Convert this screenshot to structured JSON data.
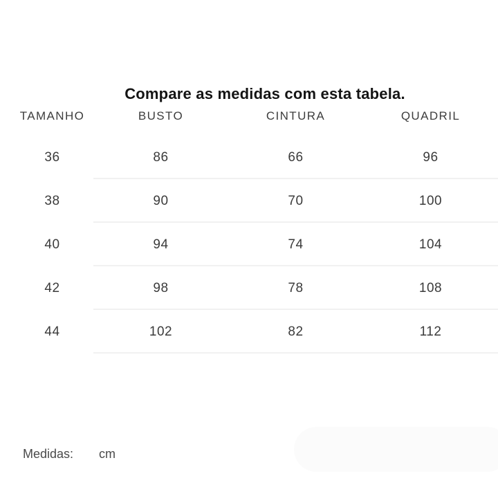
{
  "page": {
    "title": "Compare as medidas com esta tabela.",
    "background_color": "#ffffff"
  },
  "table": {
    "columns": [
      "TAMANHO",
      "BUSTO",
      "CINTURA",
      "QUADRIL"
    ],
    "rows": [
      [
        "36",
        "86",
        "66",
        "96"
      ],
      [
        "38",
        "90",
        "70",
        "100"
      ],
      [
        "40",
        "94",
        "74",
        "104"
      ],
      [
        "42",
        "98",
        "78",
        "108"
      ],
      [
        "44",
        "102",
        "82",
        "112"
      ]
    ],
    "divider_color": "#f1f1f1",
    "header_text_color": "#3d3d3d",
    "cell_text_color": "#3b3b3b"
  },
  "footer": {
    "label": "Medidas:",
    "unit": "cm"
  },
  "colors": {
    "title_text": "#141414",
    "footer_text": "#4a4a4a",
    "faded_pill": "#fbfbfb"
  }
}
